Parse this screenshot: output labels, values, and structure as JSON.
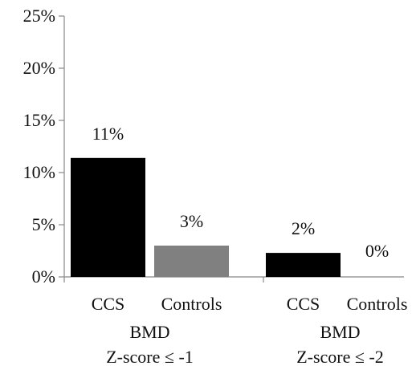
{
  "chart_data": {
    "type": "bar",
    "ylim": [
      0,
      25
    ],
    "y_ticks": [
      {
        "value": 0,
        "label": "0%"
      },
      {
        "value": 5,
        "label": "5%"
      },
      {
        "value": 10,
        "label": "10%"
      },
      {
        "value": 15,
        "label": "15%"
      },
      {
        "value": 20,
        "label": "20%"
      },
      {
        "value": 25,
        "label": "25%"
      }
    ],
    "groups": [
      {
        "label_line1": "BMD",
        "label_line2": "Z-score ≤ -1",
        "bars": [
          {
            "category": "CCS",
            "value": 11.4,
            "data_label": "11%",
            "color": "#000000"
          },
          {
            "category": "Controls",
            "value": 3.0,
            "data_label": "3%",
            "color": "#808080"
          }
        ]
      },
      {
        "label_line1": "BMD",
        "label_line2": "Z-score ≤ -2",
        "bars": [
          {
            "category": "CCS",
            "value": 2.3,
            "data_label": "2%",
            "color": "#000000"
          },
          {
            "category": "Controls",
            "value": 0.0,
            "data_label": "0%",
            "color": "#808080"
          }
        ]
      }
    ],
    "grid": false,
    "legend": "none",
    "colors": {
      "axis": "#888888",
      "text": "#111111"
    }
  }
}
